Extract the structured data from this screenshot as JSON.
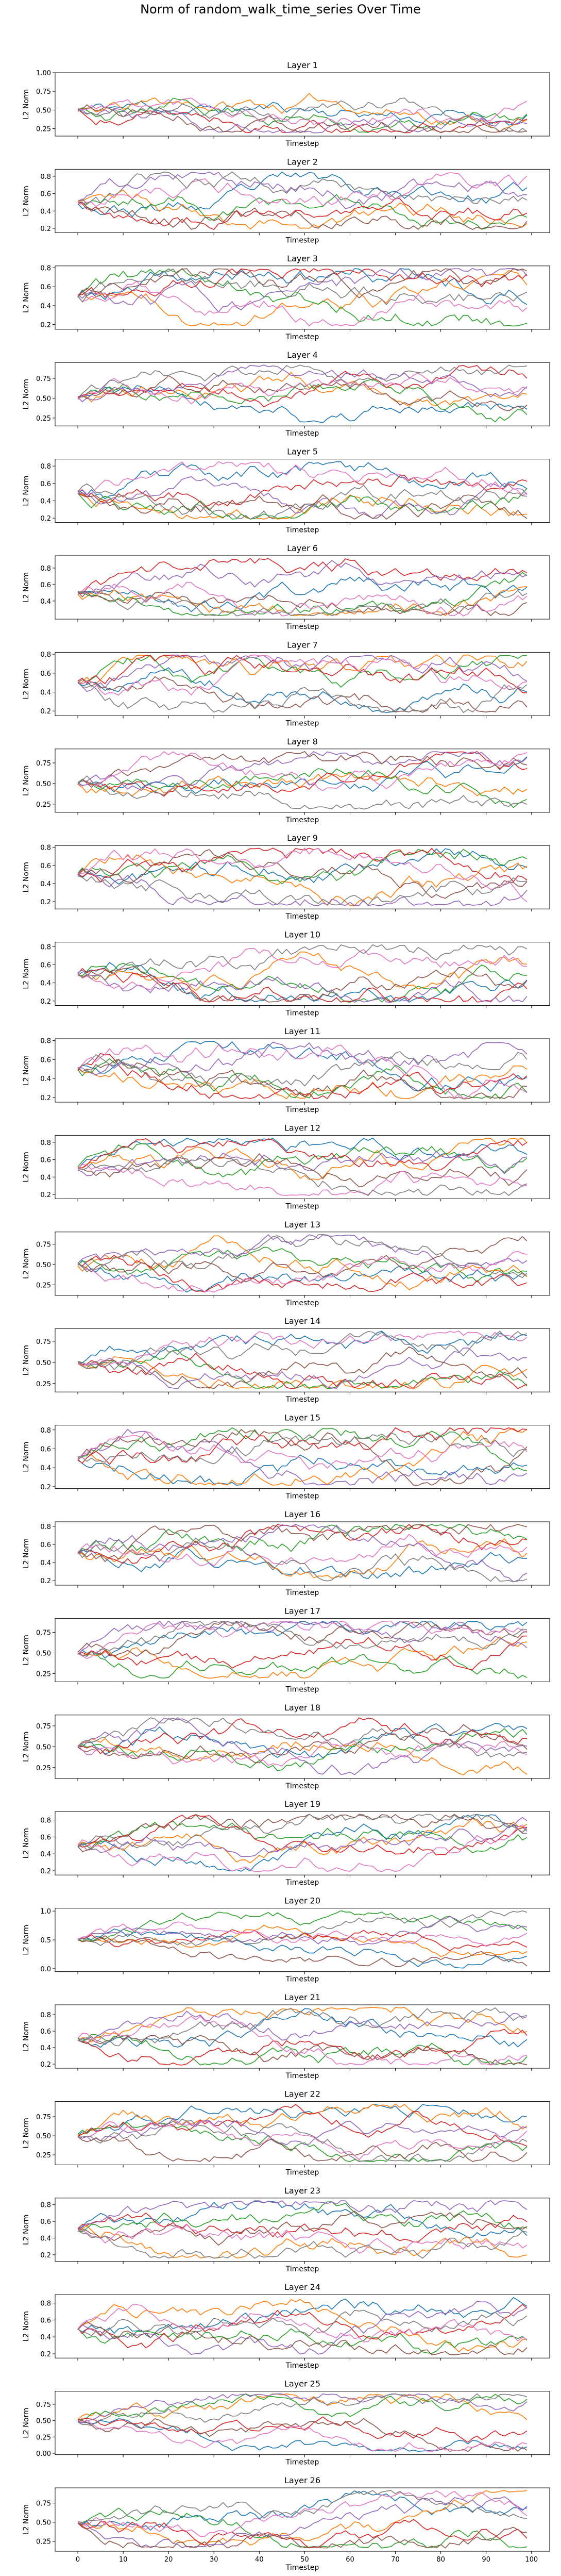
{
  "figure": {
    "title": "Norm of random_walk_time_series Over Time",
    "xlabel": "Timestep",
    "ylabel": "L2 Norm",
    "x_ticks": [
      0,
      10,
      20,
      30,
      40,
      50,
      60,
      70,
      80,
      90,
      100
    ]
  },
  "colors": [
    "#1f77b4",
    "#ff7f0e",
    "#2ca02c",
    "#d62728",
    "#9467bd",
    "#8c564b",
    "#e377c2",
    "#7f7f7f"
  ],
  "chart_data": [
    {
      "type": "line",
      "title": "Layer 1",
      "xlabel": "Timestep",
      "ylabel": "L2 Norm",
      "x_range": [
        0,
        99
      ],
      "ylim": [
        0.15,
        1.0
      ],
      "yticks": [
        "0.25",
        "0.50",
        "0.75",
        "1.00"
      ],
      "ytick_values": [
        0.25,
        0.5,
        0.75,
        1.0
      ],
      "seed": 11,
      "series_count": 8
    },
    {
      "type": "line",
      "title": "Layer 2",
      "xlabel": "Timestep",
      "ylabel": "L2 Norm",
      "x_range": [
        0,
        99
      ],
      "ylim": [
        0.15,
        0.88
      ],
      "yticks": [
        "0.2",
        "0.4",
        "0.6",
        "0.8"
      ],
      "ytick_values": [
        0.2,
        0.4,
        0.6,
        0.8
      ],
      "seed": 23,
      "series_count": 8
    },
    {
      "type": "line",
      "title": "Layer 3",
      "xlabel": "Timestep",
      "ylabel": "L2 Norm",
      "x_range": [
        0,
        99
      ],
      "ylim": [
        0.15,
        0.82
      ],
      "yticks": [
        "0.2",
        "0.4",
        "0.6",
        "0.8"
      ],
      "ytick_values": [
        0.2,
        0.4,
        0.6,
        0.8
      ],
      "seed": 37,
      "series_count": 8
    },
    {
      "type": "line",
      "title": "Layer 4",
      "xlabel": "Timestep",
      "ylabel": "L2 Norm",
      "x_range": [
        0,
        99
      ],
      "ylim": [
        0.15,
        0.95
      ],
      "yticks": [
        "0.25",
        "0.50",
        "0.75"
      ],
      "ytick_values": [
        0.25,
        0.5,
        0.75
      ],
      "seed": 41,
      "series_count": 8
    },
    {
      "type": "line",
      "title": "Layer 5",
      "xlabel": "Timestep",
      "ylabel": "L2 Norm",
      "x_range": [
        0,
        99
      ],
      "ylim": [
        0.15,
        0.88
      ],
      "yticks": [
        "0.2",
        "0.4",
        "0.6",
        "0.8"
      ],
      "ytick_values": [
        0.2,
        0.4,
        0.6,
        0.8
      ],
      "seed": 53,
      "series_count": 8
    },
    {
      "type": "line",
      "title": "Layer 6",
      "xlabel": "Timestep",
      "ylabel": "L2 Norm",
      "x_range": [
        0,
        99
      ],
      "ylim": [
        0.18,
        0.95
      ],
      "yticks": [
        "0.4",
        "0.6",
        "0.8"
      ],
      "ytick_values": [
        0.4,
        0.6,
        0.8
      ],
      "seed": 67,
      "series_count": 8
    },
    {
      "type": "line",
      "title": "Layer 7",
      "xlabel": "Timestep",
      "ylabel": "L2 Norm",
      "x_range": [
        0,
        99
      ],
      "ylim": [
        0.15,
        0.82
      ],
      "yticks": [
        "0.2",
        "0.4",
        "0.6",
        "0.8"
      ],
      "ytick_values": [
        0.2,
        0.4,
        0.6,
        0.8
      ],
      "seed": 71,
      "series_count": 8
    },
    {
      "type": "line",
      "title": "Layer 8",
      "xlabel": "Timestep",
      "ylabel": "L2 Norm",
      "x_range": [
        0,
        99
      ],
      "ylim": [
        0.15,
        0.92
      ],
      "yticks": [
        "0.25",
        "0.50",
        "0.75"
      ],
      "ytick_values": [
        0.25,
        0.5,
        0.75
      ],
      "seed": 83,
      "series_count": 8
    },
    {
      "type": "line",
      "title": "Layer 9",
      "xlabel": "Timestep",
      "ylabel": "L2 Norm",
      "x_range": [
        0,
        99
      ],
      "ylim": [
        0.12,
        0.82
      ],
      "yticks": [
        "0.2",
        "0.4",
        "0.6",
        "0.8"
      ],
      "ytick_values": [
        0.2,
        0.4,
        0.6,
        0.8
      ],
      "seed": 97,
      "series_count": 8
    },
    {
      "type": "line",
      "title": "Layer 10",
      "xlabel": "Timestep",
      "ylabel": "L2 Norm",
      "x_range": [
        0,
        99
      ],
      "ylim": [
        0.15,
        0.85
      ],
      "yticks": [
        "0.2",
        "0.4",
        "0.6",
        "0.8"
      ],
      "ytick_values": [
        0.2,
        0.4,
        0.6,
        0.8
      ],
      "seed": 101,
      "series_count": 8
    },
    {
      "type": "line",
      "title": "Layer 11",
      "xlabel": "Timestep",
      "ylabel": "L2 Norm",
      "x_range": [
        0,
        99
      ],
      "ylim": [
        0.15,
        0.82
      ],
      "yticks": [
        "0.2",
        "0.4",
        "0.6",
        "0.8"
      ],
      "ytick_values": [
        0.2,
        0.4,
        0.6,
        0.8
      ],
      "seed": 113,
      "series_count": 8
    },
    {
      "type": "line",
      "title": "Layer 12",
      "xlabel": "Timestep",
      "ylabel": "L2 Norm",
      "x_range": [
        0,
        99
      ],
      "ylim": [
        0.15,
        0.88
      ],
      "yticks": [
        "0.2",
        "0.4",
        "0.6",
        "0.8"
      ],
      "ytick_values": [
        0.2,
        0.4,
        0.6,
        0.8
      ],
      "seed": 127,
      "series_count": 8
    },
    {
      "type": "line",
      "title": "Layer 13",
      "xlabel": "Timestep",
      "ylabel": "L2 Norm",
      "x_range": [
        0,
        99
      ],
      "ylim": [
        0.12,
        0.9
      ],
      "yticks": [
        "0.25",
        "0.50",
        "0.75"
      ],
      "ytick_values": [
        0.25,
        0.5,
        0.75
      ],
      "seed": 131,
      "series_count": 8
    },
    {
      "type": "line",
      "title": "Layer 14",
      "xlabel": "Timestep",
      "ylabel": "L2 Norm",
      "x_range": [
        0,
        99
      ],
      "ylim": [
        0.15,
        0.9
      ],
      "yticks": [
        "0.25",
        "0.50",
        "0.75"
      ],
      "ytick_values": [
        0.25,
        0.5,
        0.75
      ],
      "seed": 149,
      "series_count": 8
    },
    {
      "type": "line",
      "title": "Layer 15",
      "xlabel": "Timestep",
      "ylabel": "L2 Norm",
      "x_range": [
        0,
        99
      ],
      "ylim": [
        0.18,
        0.85
      ],
      "yticks": [
        "0.2",
        "0.4",
        "0.6",
        "0.8"
      ],
      "ytick_values": [
        0.2,
        0.4,
        0.6,
        0.8
      ],
      "seed": 151,
      "series_count": 8
    },
    {
      "type": "line",
      "title": "Layer 16",
      "xlabel": "Timestep",
      "ylabel": "L2 Norm",
      "x_range": [
        0,
        99
      ],
      "ylim": [
        0.15,
        0.85
      ],
      "yticks": [
        "0.2",
        "0.4",
        "0.6",
        "0.8"
      ],
      "ytick_values": [
        0.2,
        0.4,
        0.6,
        0.8
      ],
      "seed": 163,
      "series_count": 8
    },
    {
      "type": "line",
      "title": "Layer 17",
      "xlabel": "Timestep",
      "ylabel": "L2 Norm",
      "x_range": [
        0,
        99
      ],
      "ylim": [
        0.15,
        0.92
      ],
      "yticks": [
        "0.25",
        "0.50",
        "0.75"
      ],
      "ytick_values": [
        0.25,
        0.5,
        0.75
      ],
      "seed": 173,
      "series_count": 8
    },
    {
      "type": "line",
      "title": "Layer 18",
      "xlabel": "Timestep",
      "ylabel": "L2 Norm",
      "x_range": [
        0,
        99
      ],
      "ylim": [
        0.12,
        0.88
      ],
      "yticks": [
        "0.25",
        "0.50",
        "0.75"
      ],
      "ytick_values": [
        0.25,
        0.5,
        0.75
      ],
      "seed": 181,
      "series_count": 8
    },
    {
      "type": "line",
      "title": "Layer 19",
      "xlabel": "Timestep",
      "ylabel": "L2 Norm",
      "x_range": [
        0,
        99
      ],
      "ylim": [
        0.15,
        0.9
      ],
      "yticks": [
        "0.2",
        "0.4",
        "0.6",
        "0.8"
      ],
      "ytick_values": [
        0.2,
        0.4,
        0.6,
        0.8
      ],
      "seed": 191,
      "series_count": 8
    },
    {
      "type": "line",
      "title": "Layer 20",
      "xlabel": "Timestep",
      "ylabel": "L2 Norm",
      "x_range": [
        0,
        99
      ],
      "ylim": [
        -0.05,
        1.05
      ],
      "yticks": [
        "0.0",
        "0.5",
        "1.0"
      ],
      "ytick_values": [
        0.0,
        0.5,
        1.0
      ],
      "seed": 199,
      "series_count": 8
    },
    {
      "type": "line",
      "title": "Layer 21",
      "xlabel": "Timestep",
      "ylabel": "L2 Norm",
      "x_range": [
        0,
        99
      ],
      "ylim": [
        0.15,
        0.92
      ],
      "yticks": [
        "0.2",
        "0.4",
        "0.6",
        "0.8"
      ],
      "ytick_values": [
        0.2,
        0.4,
        0.6,
        0.8
      ],
      "seed": 211,
      "series_count": 8
    },
    {
      "type": "line",
      "title": "Layer 22",
      "xlabel": "Timestep",
      "ylabel": "L2 Norm",
      "x_range": [
        0,
        99
      ],
      "ylim": [
        0.12,
        0.95
      ],
      "yticks": [
        "0.25",
        "0.50",
        "0.75"
      ],
      "ytick_values": [
        0.25,
        0.5,
        0.75
      ],
      "seed": 223,
      "series_count": 8
    },
    {
      "type": "line",
      "title": "Layer 23",
      "xlabel": "Timestep",
      "ylabel": "L2 Norm",
      "x_range": [
        0,
        99
      ],
      "ylim": [
        0.12,
        0.88
      ],
      "yticks": [
        "0.2",
        "0.4",
        "0.6",
        "0.8"
      ],
      "ytick_values": [
        0.2,
        0.4,
        0.6,
        0.8
      ],
      "seed": 227,
      "series_count": 8
    },
    {
      "type": "line",
      "title": "Layer 24",
      "xlabel": "Timestep",
      "ylabel": "L2 Norm",
      "x_range": [
        0,
        99
      ],
      "ylim": [
        0.15,
        0.9
      ],
      "yticks": [
        "0.2",
        "0.4",
        "0.6",
        "0.8"
      ],
      "ytick_values": [
        0.2,
        0.4,
        0.6,
        0.8
      ],
      "seed": 233,
      "series_count": 8
    },
    {
      "type": "line",
      "title": "Layer 25",
      "xlabel": "Timestep",
      "ylabel": "L2 Norm",
      "x_range": [
        0,
        99
      ],
      "ylim": [
        -0.02,
        0.95
      ],
      "yticks": [
        "0.00",
        "0.25",
        "0.50",
        "0.75"
      ],
      "ytick_values": [
        0.0,
        0.25,
        0.5,
        0.75
      ],
      "seed": 239,
      "series_count": 8
    },
    {
      "type": "line",
      "title": "Layer 26",
      "xlabel": "Timestep",
      "ylabel": "L2 Norm",
      "x_range": [
        0,
        99
      ],
      "ylim": [
        0.12,
        0.95
      ],
      "yticks": [
        "0.25",
        "0.50",
        "0.75"
      ],
      "ytick_values": [
        0.25,
        0.5,
        0.75
      ],
      "seed": 241,
      "series_count": 8
    }
  ]
}
